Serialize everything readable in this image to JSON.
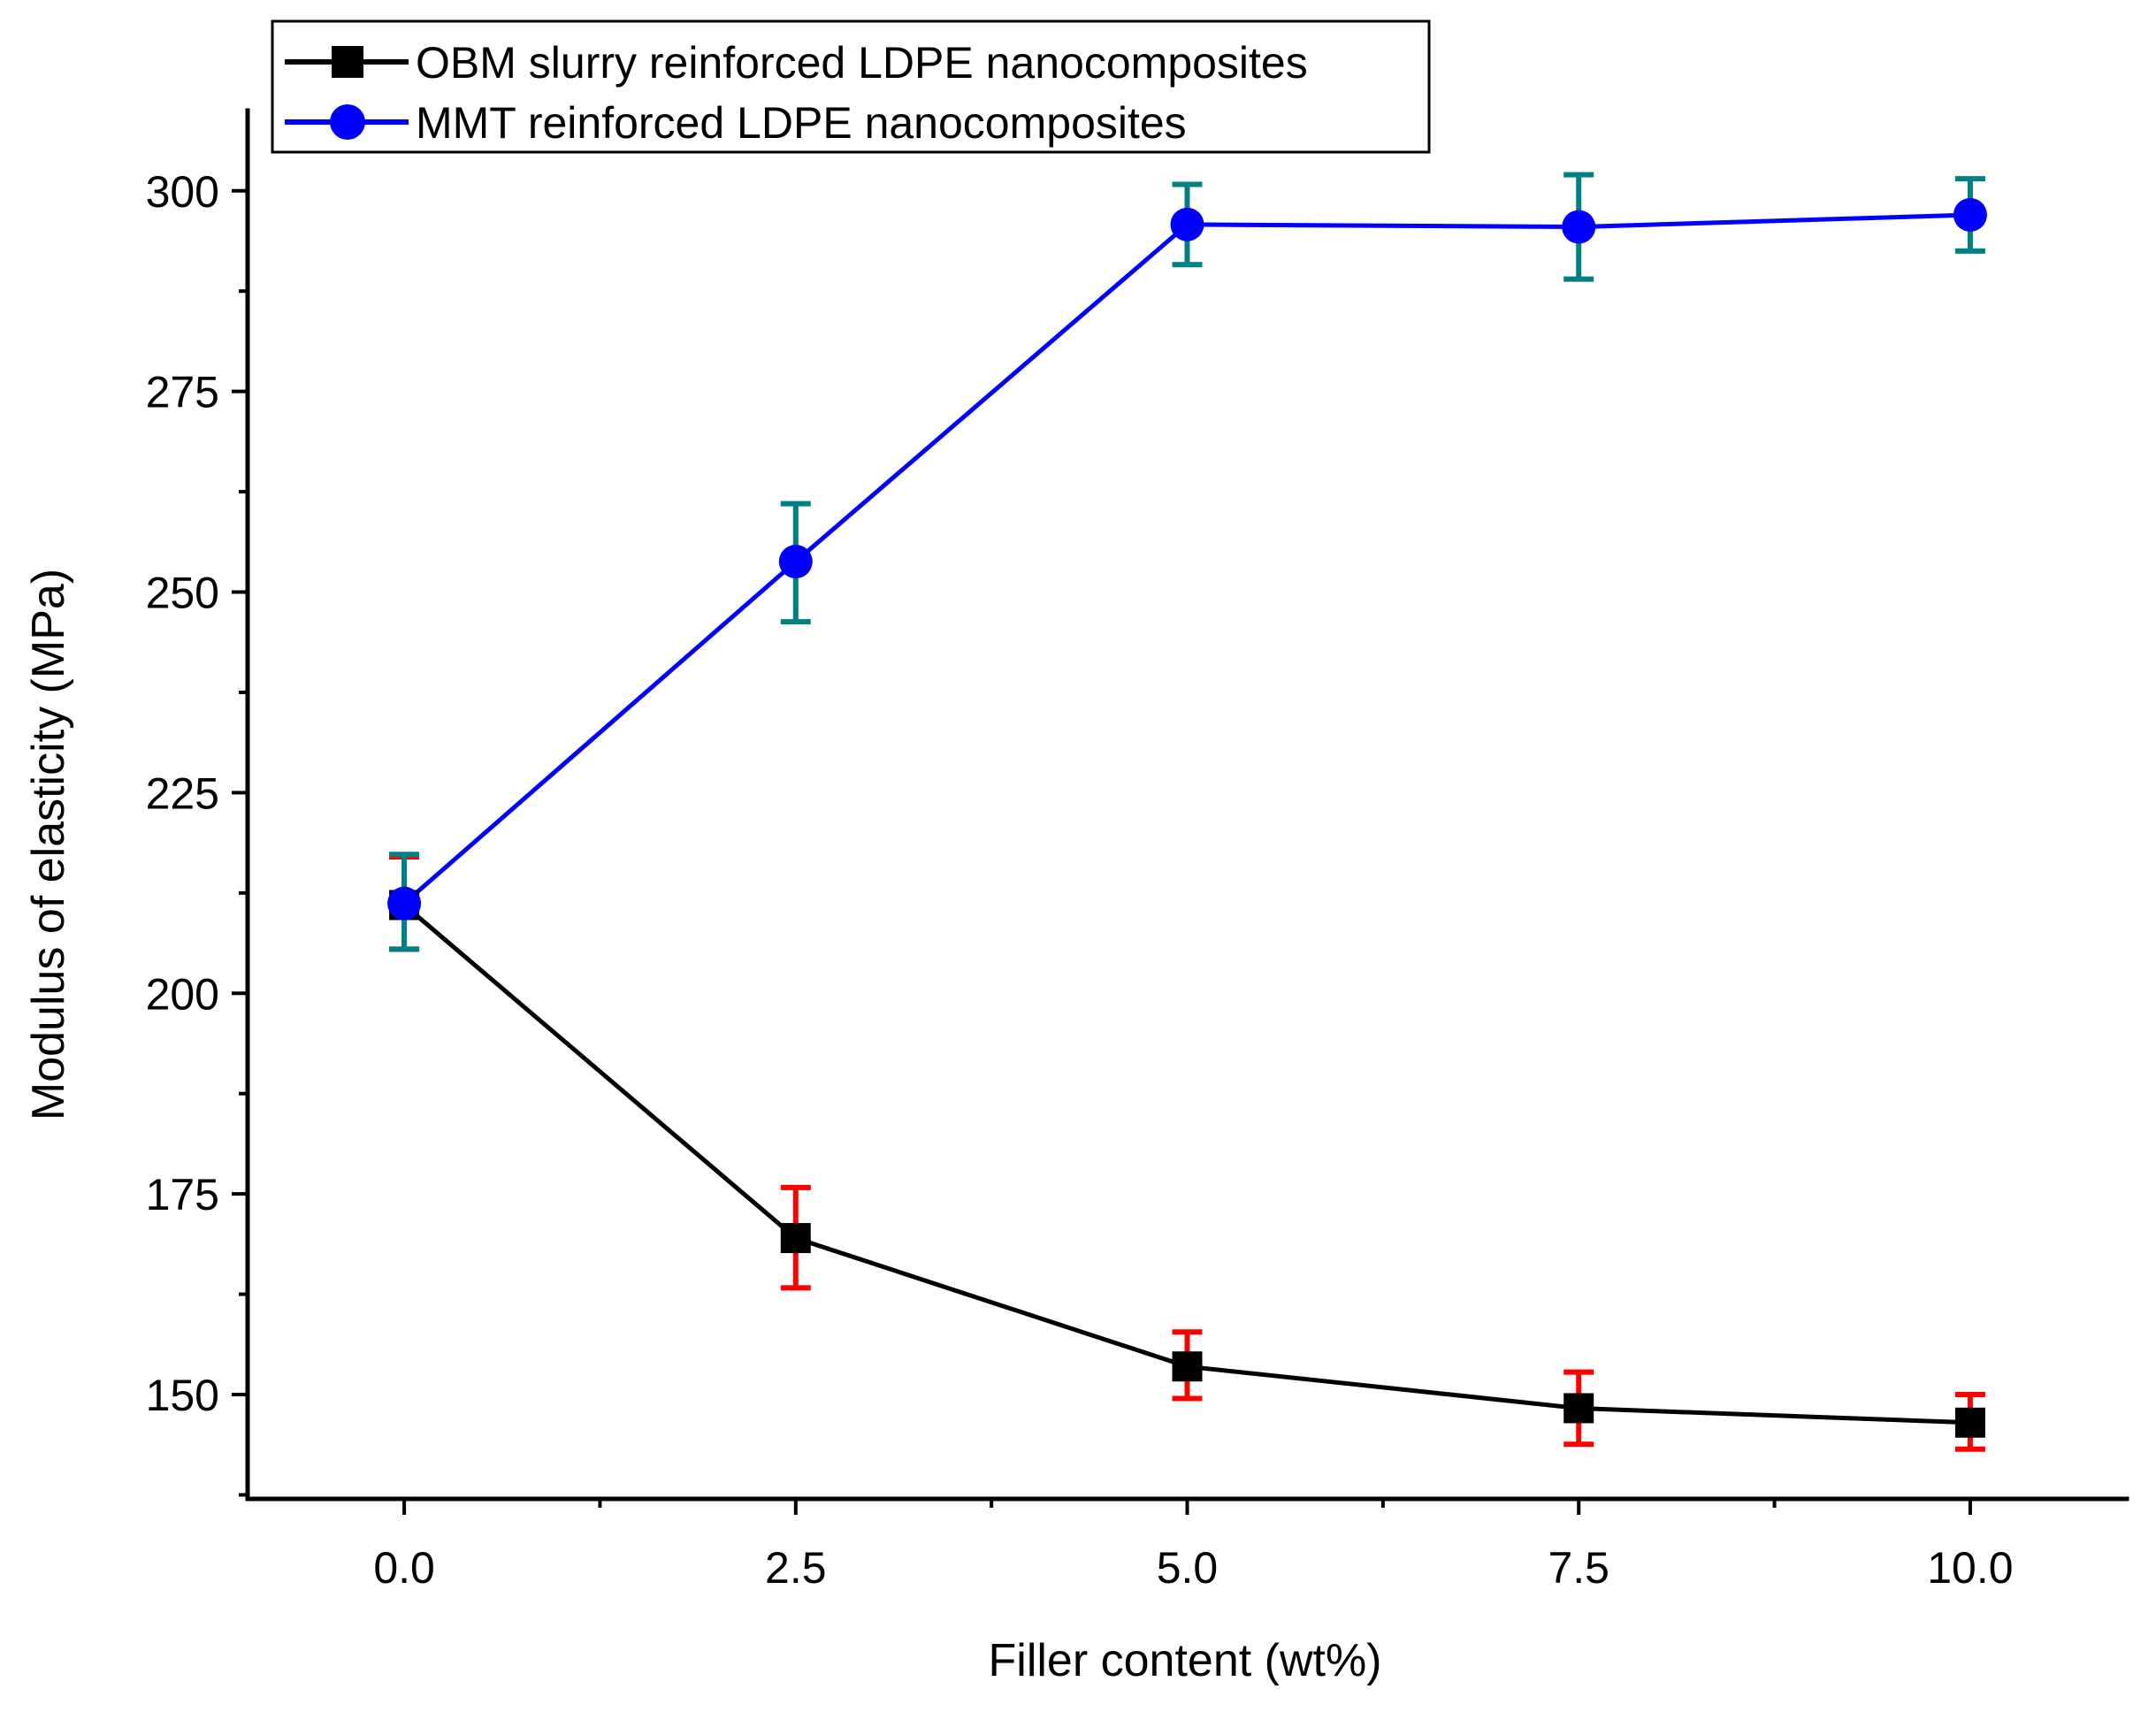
{
  "chart_data": {
    "type": "line",
    "title": "",
    "xlabel": "Filler content (wt%)",
    "ylabel": "Modulus of elasticity (MPa)",
    "xlim": [
      -1.0,
      11.0
    ],
    "ylim": [
      137,
      310
    ],
    "x_ticks": [
      0.0,
      2.5,
      5.0,
      7.5,
      10.0
    ],
    "x_tick_labels": [
      "0.0",
      "2.5",
      "5.0",
      "7.5",
      "10.0"
    ],
    "y_ticks": [
      150,
      175,
      200,
      225,
      250,
      275,
      300
    ],
    "y_tick_labels": [
      "150",
      "175",
      "200",
      "225",
      "250",
      "275",
      "300"
    ],
    "grid": false,
    "legend_position": "top-left",
    "series": [
      {
        "name": "OBM slurry reinforced LDPE nanocomposites",
        "color": "#000000",
        "error_color": "#ff0000",
        "marker": "square",
        "x": [
          0.0,
          2.5,
          5.0,
          7.5,
          10.0
        ],
        "values": [
          211,
          169.5,
          153.5,
          148.3,
          146.5
        ],
        "error_low": [
          205.5,
          163.3,
          149.5,
          143.8,
          143.2
        ],
        "error_high": [
          217,
          175.8,
          157.8,
          152.8,
          150
        ]
      },
      {
        "name": "MMT reinforced LDPE nanocomposites",
        "color": "#0000ff",
        "error_color": "#008080",
        "marker": "circle",
        "x": [
          0.0,
          2.5,
          5.0,
          7.5,
          10.0
        ],
        "values": [
          211.2,
          253.8,
          295.8,
          295.5,
          297
        ],
        "error_low": [
          205.5,
          246.3,
          290.8,
          289,
          292.5
        ],
        "error_high": [
          217.3,
          261,
          300.8,
          302,
          301.5
        ]
      }
    ]
  }
}
